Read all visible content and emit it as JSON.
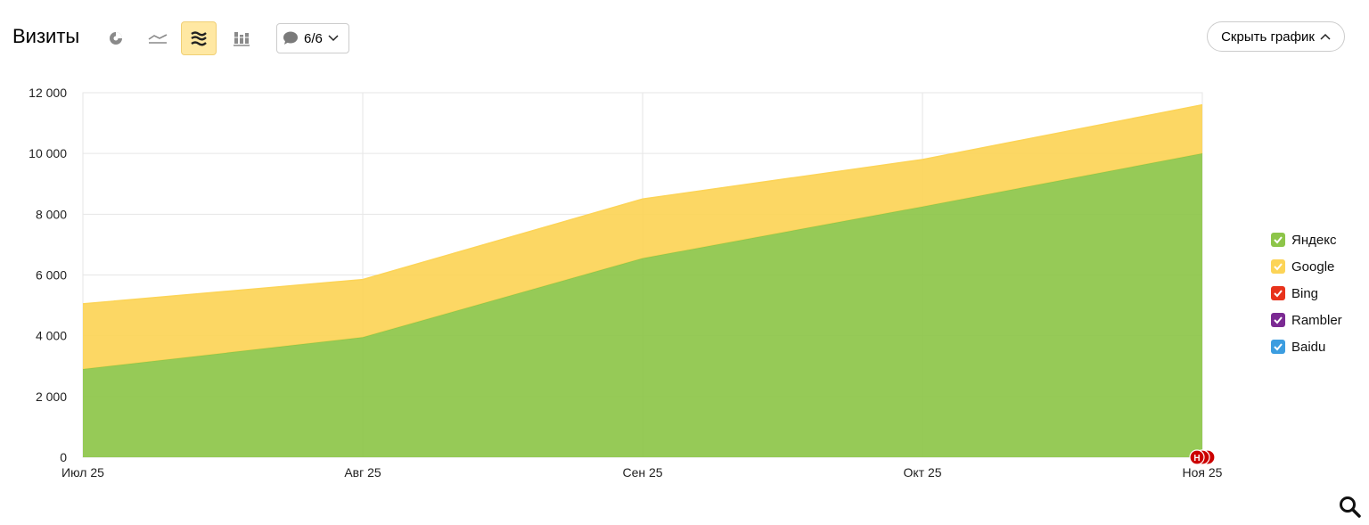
{
  "header": {
    "title": "Визиты",
    "notes_label": "6/6",
    "hide_chart_label": "Скрыть график"
  },
  "toolbar": {
    "chart_types": [
      {
        "icon": "pie-chart-icon",
        "active": false
      },
      {
        "icon": "line-chart-icon",
        "active": false
      },
      {
        "icon": "area-chart-icon",
        "active": true
      },
      {
        "icon": "bar-chart-icon",
        "active": false
      }
    ]
  },
  "colors": {
    "Яндекс": "#8dc549",
    "Google": "#fcd457",
    "Bing": "#e8331c",
    "Rambler": "#7b2a93",
    "Baidu": "#3c9de0",
    "grid": "#e6e6e6",
    "marker": "#cc0000"
  },
  "legend": [
    {
      "label": "Яндекс",
      "color": "#8dc549"
    },
    {
      "label": "Google",
      "color": "#fcd457"
    },
    {
      "label": "Bing",
      "color": "#e8331c"
    },
    {
      "label": "Rambler",
      "color": "#7b2a93"
    },
    {
      "label": "Baidu",
      "color": "#3c9de0"
    }
  ],
  "chart_data": {
    "type": "area",
    "stacked": true,
    "categories": [
      "Июл 25",
      "Авг 25",
      "Сен 25",
      "Окт 25",
      "Ноя 25"
    ],
    "yticks": [
      "0",
      "2 000",
      "4 000",
      "6 000",
      "8 000",
      "10 000",
      "12 000"
    ],
    "ylim": [
      0,
      12000
    ],
    "grid": true,
    "legend_position": "right",
    "series": [
      {
        "name": "Яндекс",
        "values": [
          2900,
          3950,
          6550,
          8250,
          10000
        ]
      },
      {
        "name": "Google",
        "values": [
          2150,
          1900,
          1950,
          1550,
          1600
        ]
      },
      {
        "name": "Bing",
        "values": [
          0,
          0,
          0,
          0,
          0
        ]
      },
      {
        "name": "Rambler",
        "values": [
          0,
          0,
          0,
          0,
          0
        ]
      },
      {
        "name": "Baidu",
        "values": [
          0,
          0,
          0,
          0,
          0
        ]
      }
    ],
    "annotation_marker": "Н"
  }
}
